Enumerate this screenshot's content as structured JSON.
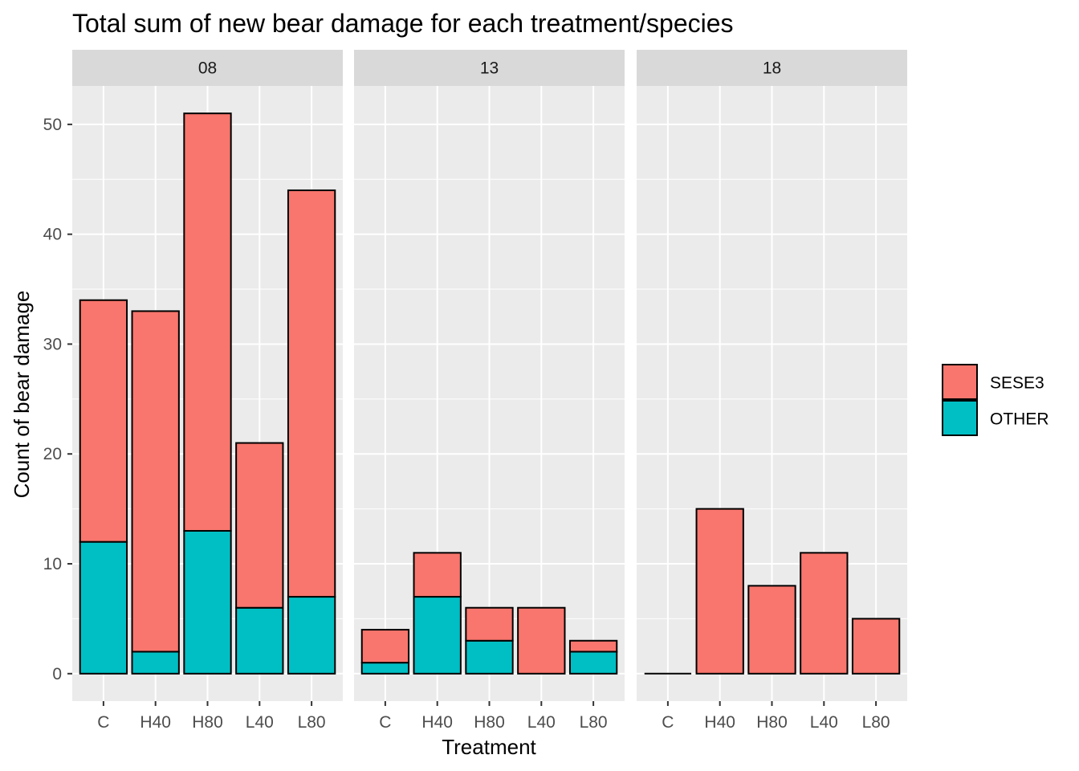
{
  "chart_data": {
    "type": "bar",
    "stacked": true,
    "title": "Total sum of new bear damage for each treatment/species",
    "xlabel": "Treatment",
    "ylabel": "Count of bear damage",
    "ylim": [
      -2.5,
      53.5
    ],
    "yticks": [
      0,
      10,
      20,
      30,
      40,
      50
    ],
    "categories": [
      "C",
      "H40",
      "H80",
      "L40",
      "L80"
    ],
    "legend": {
      "position": "right",
      "entries": [
        "SESE3",
        "OTHER"
      ]
    },
    "colors": {
      "SESE3": "#F8766D",
      "OTHER": "#00BFC4",
      "panel_bg": "#EBEBEB",
      "strip_bg": "#D9D9D9",
      "grid": "#FFFFFF"
    },
    "grid": true,
    "panels": [
      {
        "label": "08",
        "series": [
          {
            "name": "SESE3",
            "values": [
              22,
              31,
              38,
              15,
              37
            ]
          },
          {
            "name": "OTHER",
            "values": [
              12,
              2,
              13,
              6,
              7
            ]
          }
        ]
      },
      {
        "label": "13",
        "series": [
          {
            "name": "SESE3",
            "values": [
              3,
              4,
              3,
              6,
              1
            ]
          },
          {
            "name": "OTHER",
            "values": [
              1,
              7,
              3,
              0,
              2
            ]
          }
        ]
      },
      {
        "label": "18",
        "series": [
          {
            "name": "SESE3",
            "values": [
              0,
              15,
              8,
              11,
              5
            ]
          },
          {
            "name": "OTHER",
            "values": [
              0,
              0,
              0,
              0,
              0
            ]
          }
        ]
      }
    ]
  }
}
